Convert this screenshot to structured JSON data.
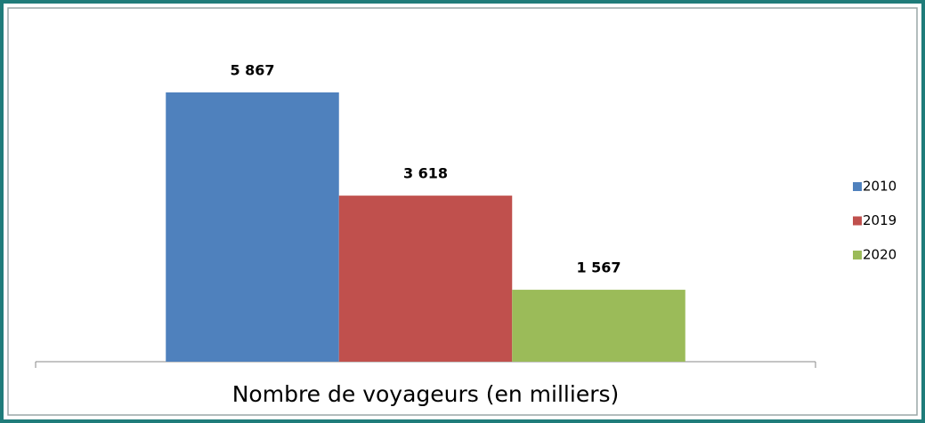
{
  "chart_data": {
    "type": "bar",
    "categories": [
      "Nombre de voyageurs (en milliers)"
    ],
    "series": [
      {
        "name": "2010",
        "color": "#4f81bd",
        "values": [
          5867
        ],
        "value_labels": [
          "5 867"
        ]
      },
      {
        "name": "2019",
        "color": "#c0504d",
        "values": [
          3618
        ],
        "value_labels": [
          "3 618"
        ]
      },
      {
        "name": "2020",
        "color": "#9bbb59",
        "values": [
          1567
        ],
        "value_labels": [
          "1 567"
        ]
      }
    ],
    "legend": "right"
  }
}
